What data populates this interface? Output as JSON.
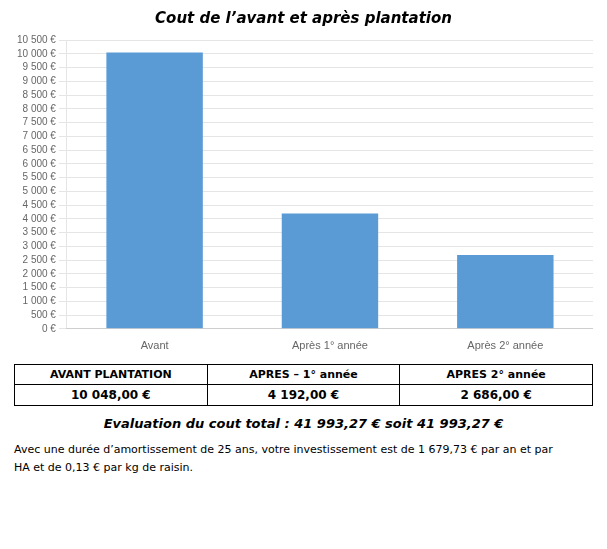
{
  "chart_data": {
    "type": "bar",
    "title": "Cout de l’avant et après plantation",
    "categories": [
      "Avant",
      "Après 1° année",
      "Après 2° année"
    ],
    "values": [
      10048.0,
      4192.0,
      2686.0
    ],
    "color": "#5b9bd5",
    "ylim": [
      0,
      10500
    ],
    "yticks": [
      {
        "value": 0,
        "label": "0 €"
      },
      {
        "value": 500,
        "label": "500 €"
      },
      {
        "value": 1000,
        "label": "1 000 €"
      },
      {
        "value": 1500,
        "label": "1 500 €"
      },
      {
        "value": 2000,
        "label": "2 000 €"
      },
      {
        "value": 2500,
        "label": "2 500 €"
      },
      {
        "value": 3000,
        "label": "3 000 €"
      },
      {
        "value": 3500,
        "label": "3 500 €"
      },
      {
        "value": 4000,
        "label": "4 000 €"
      },
      {
        "value": 4500,
        "label": "4 500 €"
      },
      {
        "value": 5000,
        "label": "5 000 €"
      },
      {
        "value": 5500,
        "label": "5 500 €"
      },
      {
        "value": 6000,
        "label": "6 000 €"
      },
      {
        "value": 6500,
        "label": "6 500 €"
      },
      {
        "value": 7000,
        "label": "7 000 €"
      },
      {
        "value": 7500,
        "label": "7 500 €"
      },
      {
        "value": 8000,
        "label": "8 000 €"
      },
      {
        "value": 8500,
        "label": "8 500 €"
      },
      {
        "value": 9000,
        "label": "9 000 €"
      },
      {
        "value": 9500,
        "label": "9 500 €"
      },
      {
        "value": 10000,
        "label": "10 000 €"
      },
      {
        "value": 10500,
        "label": "10 500 €"
      }
    ],
    "grid": true,
    "table": {
      "headers": [
        "AVANT PLANTATION",
        "APRES – 1° année",
        "APRES 2° année"
      ],
      "values": [
        "10 048,00 €",
        "4 192,00 €",
        "2 686,00 €"
      ]
    },
    "annotations": [
      "Evaluation du cout total : 41 993,27 € soit 41 993,27 €",
      "Avec une durée d’amortissement de 25 ans, votre investissement est de 1 679,73 € par an et par\nHA et de 0,13 € par kg de raisin."
    ]
  }
}
